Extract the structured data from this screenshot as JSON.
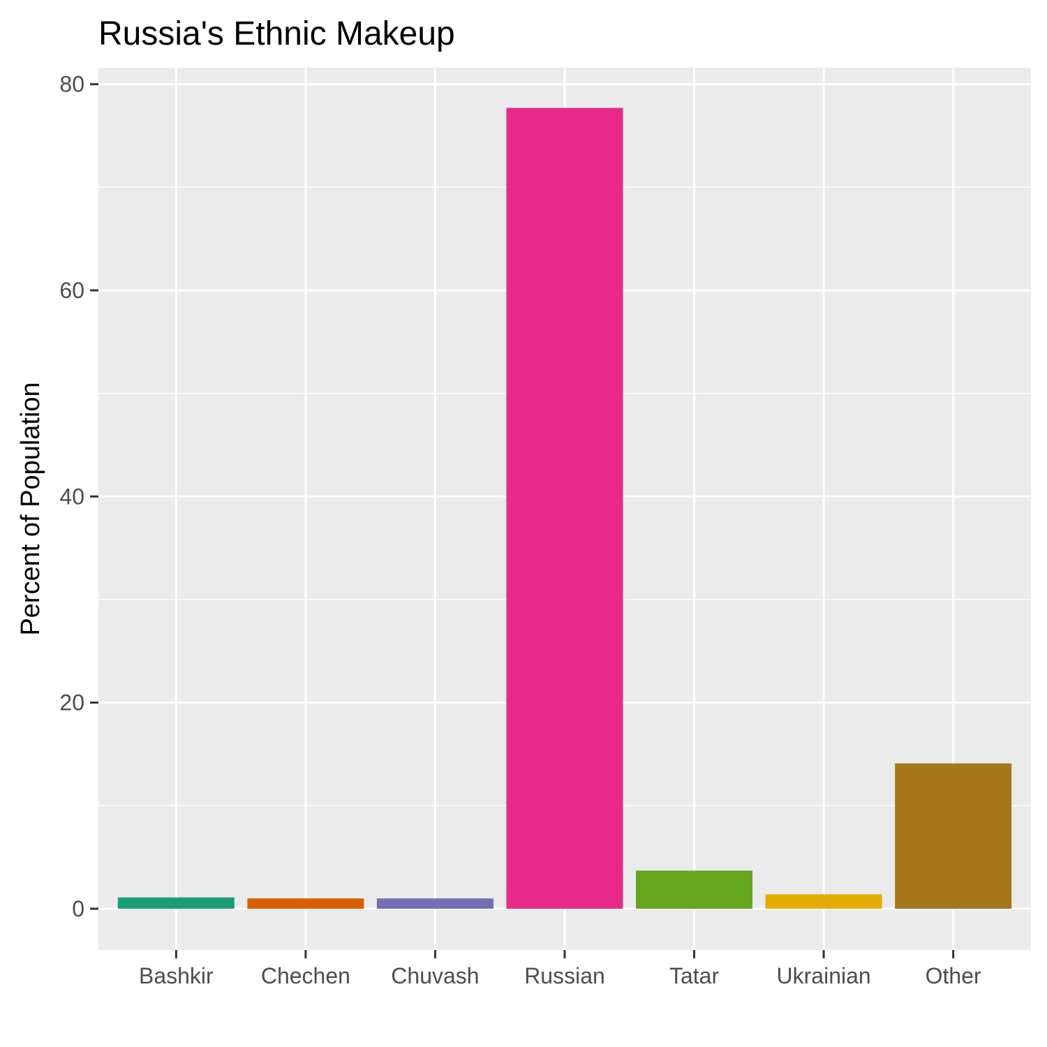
{
  "chart_data": {
    "type": "bar",
    "title": "Russia's Ethnic Makeup",
    "xlabel": "",
    "ylabel": "Percent of Population",
    "categories": [
      "Bashkir",
      "Chechen",
      "Chuvash",
      "Russian",
      "Tatar",
      "Ukrainian",
      "Other"
    ],
    "values": [
      1.1,
      1.0,
      1.0,
      77.7,
      3.7,
      1.4,
      14.1
    ],
    "colors": [
      "#1b9e77",
      "#d95f02",
      "#7570b3",
      "#e7298a",
      "#66a61e",
      "#e6ab02",
      "#a6761d"
    ],
    "ylim": [
      -4.0,
      81.6
    ],
    "yticks": [
      0,
      20,
      40,
      60,
      80
    ],
    "grid": true,
    "legend": "none",
    "panel_background": "#ebebeb",
    "grid_color": "#ffffff"
  }
}
